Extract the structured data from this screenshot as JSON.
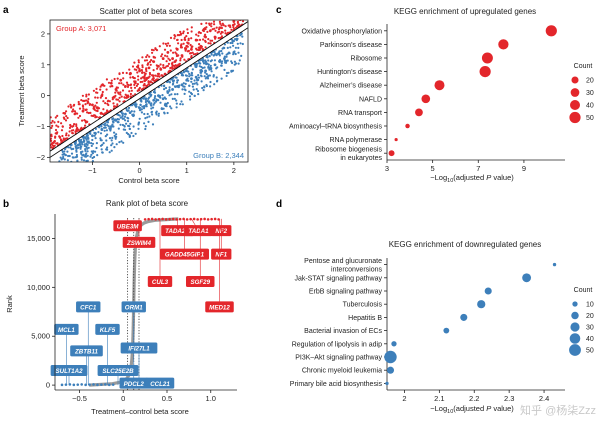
{
  "panels": {
    "a": {
      "letter": "a"
    },
    "b": {
      "letter": "b"
    },
    "c": {
      "letter": "c"
    },
    "d": {
      "letter": "d"
    }
  },
  "colors": {
    "red": "#e3262b",
    "blue": "#3d7fba",
    "gray": "#888888",
    "axis": "#222222"
  },
  "watermark": "知乎 @杨柒Zzz",
  "chart_data": [
    {
      "id": "a",
      "type": "scatter",
      "title": "Scatter plot of beta scores",
      "xlabel": "Control beta score",
      "ylabel": "Treatment beta score",
      "xlim": [
        -1.9,
        2.3
      ],
      "ylim": [
        -2.15,
        2.45
      ],
      "xticks": [
        -1,
        0,
        1,
        2
      ],
      "yticks": [
        -2,
        -1,
        0,
        1,
        2
      ],
      "groupA": {
        "label": "Group A: 3,071",
        "color": "#e3262b"
      },
      "groupB": {
        "label": "Group B: 2,344",
        "color": "#3d7fba"
      },
      "diagonal_lines": [
        {
          "intercept": 0.1
        },
        {
          "intercept": -0.1
        }
      ],
      "red_points": [
        [
          -0.6,
          0.4
        ],
        [
          -0.4,
          0.5
        ],
        [
          -0.2,
          0.7
        ],
        [
          0.0,
          0.8
        ],
        [
          0.2,
          0.9
        ],
        [
          0.3,
          1.1
        ],
        [
          0.5,
          1.2
        ],
        [
          0.6,
          1.4
        ],
        [
          0.8,
          1.5
        ],
        [
          1.0,
          1.6
        ],
        [
          1.2,
          1.8
        ],
        [
          1.4,
          1.9
        ],
        [
          1.5,
          2.1
        ],
        [
          1.7,
          2.2
        ],
        [
          2.0,
          2.4
        ],
        [
          -0.8,
          0.0
        ],
        [
          -0.5,
          0.2
        ],
        [
          0.1,
          0.6
        ],
        [
          0.4,
          0.95
        ],
        [
          0.9,
          1.3
        ],
        [
          1.1,
          1.5
        ],
        [
          -1.0,
          -0.3
        ],
        [
          -1.2,
          -0.5
        ],
        [
          0.7,
          1.2
        ],
        [
          1.3,
          1.6
        ],
        [
          1.6,
          1.9
        ],
        [
          -0.3,
          0.3
        ],
        [
          0.15,
          0.55
        ],
        [
          0.45,
          0.85
        ],
        [
          0.75,
          1.1
        ]
      ],
      "blue_points": [
        [
          -1.6,
          -1.9
        ],
        [
          -1.3,
          -1.6
        ],
        [
          -1.0,
          -1.3
        ],
        [
          -0.8,
          -1.1
        ],
        [
          -0.5,
          -0.8
        ],
        [
          -0.3,
          -0.6
        ],
        [
          0.0,
          -0.4
        ],
        [
          0.2,
          -0.2
        ],
        [
          0.4,
          0.0
        ],
        [
          0.6,
          0.1
        ],
        [
          0.8,
          0.3
        ],
        [
          1.0,
          0.5
        ],
        [
          1.2,
          0.6
        ],
        [
          1.4,
          0.8
        ],
        [
          1.6,
          1.0
        ],
        [
          1.8,
          1.2
        ],
        [
          2.0,
          1.4
        ],
        [
          -1.1,
          -1.5
        ],
        [
          -0.6,
          -1.0
        ],
        [
          0.1,
          -0.35
        ],
        [
          0.5,
          -0.1
        ],
        [
          0.9,
          0.35
        ],
        [
          1.3,
          0.75
        ],
        [
          1.7,
          1.1
        ],
        [
          -0.2,
          -0.55
        ],
        [
          0.3,
          -0.15
        ],
        [
          0.7,
          0.2
        ],
        [
          1.1,
          0.55
        ],
        [
          1.5,
          0.9
        ]
      ]
    },
    {
      "id": "b",
      "type": "scatter",
      "title": "Rank plot of beta score",
      "xlabel": "Treatment–control beta score",
      "ylabel": "Rank",
      "xlim": [
        -0.78,
        1.3
      ],
      "ylim": [
        -500,
        17500
      ],
      "xticks": [
        -0.5,
        0,
        0.5,
        1
      ],
      "xtick_labels": [
        "−0.5",
        "0",
        "0.5",
        "1.0"
      ],
      "yticks": [
        0,
        5000,
        10000,
        15000
      ],
      "ytick_labels": [
        "0",
        "5,000",
        "10,000",
        "15,000"
      ],
      "dotted_vlines": [
        0.05,
        0.12,
        0.18
      ],
      "red_genes": [
        {
          "name": "UBE3M",
          "x": 0.05,
          "y": 17000,
          "lx": 0.05,
          "ly": 16300
        },
        {
          "name": "ZSWIM4",
          "x": 0.18,
          "y": 17000,
          "lx": 0.18,
          "ly": 14600
        },
        {
          "name": "TADA2B",
          "x": 0.62,
          "y": 17000,
          "lx": 0.62,
          "ly": 15800
        },
        {
          "name": "TADA1",
          "x": 0.78,
          "y": 17000,
          "lx": 0.86,
          "ly": 15800
        },
        {
          "name": "NF2",
          "x": 1.12,
          "y": 17000,
          "lx": 1.12,
          "ly": 15800
        },
        {
          "name": "GADD45GIP1",
          "x": 0.7,
          "y": 17000,
          "lx": 0.7,
          "ly": 13400
        },
        {
          "name": "NF1",
          "x": 1.12,
          "y": 17000,
          "lx": 1.12,
          "ly": 13400
        },
        {
          "name": "CUL3",
          "x": 0.42,
          "y": 17000,
          "lx": 0.42,
          "ly": 10600
        },
        {
          "name": "SGF29",
          "x": 0.88,
          "y": 17000,
          "lx": 0.88,
          "ly": 10600
        },
        {
          "name": "MED12",
          "x": 1.1,
          "y": 17000,
          "lx": 1.1,
          "ly": 8000
        }
      ],
      "blue_genes": [
        {
          "name": "CFC1",
          "x": -0.4,
          "y": 0,
          "lx": -0.4,
          "ly": 8000
        },
        {
          "name": "ORM1",
          "x": 0.12,
          "y": 0,
          "lx": 0.12,
          "ly": 8000
        },
        {
          "name": "MCL1",
          "x": -0.65,
          "y": 0,
          "lx": -0.65,
          "ly": 5700
        },
        {
          "name": "KLF5",
          "x": -0.18,
          "y": 0,
          "lx": -0.18,
          "ly": 5700
        },
        {
          "name": "IFI27L1",
          "x": 0.18,
          "y": 0,
          "lx": 0.18,
          "ly": 3800
        },
        {
          "name": "ZBTB11",
          "x": -0.42,
          "y": 0,
          "lx": -0.42,
          "ly": 3500
        },
        {
          "name": "SULT1A2",
          "x": -0.62,
          "y": 0,
          "lx": -0.62,
          "ly": 1500
        },
        {
          "name": "SLC25E2B",
          "x": -0.06,
          "y": 0,
          "lx": -0.06,
          "ly": 1500
        },
        {
          "name": "PDCL2",
          "x": 0.12,
          "y": 0,
          "lx": 0.12,
          "ly": 200
        },
        {
          "name": "CCL21",
          "x": 0.42,
          "y": 0,
          "lx": 0.42,
          "ly": 200
        }
      ]
    },
    {
      "id": "c",
      "type": "scatter",
      "title": "KEGG enrichment of upregulated genes",
      "xlabel": "−Log₁₀(adjusted P value)",
      "xlim": [
        3,
        10.8
      ],
      "xticks": [
        3,
        5,
        7,
        9
      ],
      "categories": [
        "Oxidative phosphorylation",
        "Parkinson’s disease",
        "Ribosome",
        "Huntington’s disease",
        "Alzheimer’s disease",
        "NAFLD",
        "RNA transport",
        "Aminoacyl–tRNA biosynthesis",
        "RNA polymerase",
        "Ribosome biogenesis in eukaryotes"
      ],
      "label_lines": [
        [
          "Oxidative phosphorylation"
        ],
        [
          "Parkinson’s disease"
        ],
        [
          "Ribosome"
        ],
        [
          "Huntington’s disease"
        ],
        [
          "Alzheimer’s disease"
        ],
        [
          "NAFLD"
        ],
        [
          "RNA transport"
        ],
        [
          "Aminoacyl–tRNA biosynthesis"
        ],
        [
          "RNA polymerase"
        ],
        [
          "Ribosome biogenesis",
          "in eukaryotes"
        ]
      ],
      "values": [
        10.2,
        8.1,
        7.4,
        7.3,
        5.3,
        4.7,
        4.4,
        3.9,
        3.4,
        3.2
      ],
      "counts": [
        50,
        42,
        48,
        50,
        40,
        30,
        24,
        8,
        4,
        14
      ],
      "legend_title": "Count",
      "legend_values": [
        20,
        30,
        40,
        50
      ],
      "color": "#e3262b"
    },
    {
      "id": "d",
      "type": "scatter",
      "title": "KEGG enrichment of downregulated genes",
      "xlabel": "−Log₁₀(adjusted P value)",
      "xlim": [
        1.95,
        2.46
      ],
      "xticks": [
        2.0,
        2.1,
        2.2,
        2.3,
        2.4
      ],
      "categories": [
        "Pentose and glucuronate interconversions",
        "Jak-STAT signaling pathway",
        "ErbB signaling pathway",
        "Tuberculosis",
        "Hepatitis B",
        "Bacterial invasion of ECs",
        "Regulation of lipolysis in adip",
        "PI3K–Akt signaling pathway",
        "Chronic myeloid leukemia",
        "Primary bile acid biosynthesis"
      ],
      "label_lines": [
        [
          "Pentose and glucuronate",
          "interconversions"
        ],
        [
          "Jak-STAT signaling pathway"
        ],
        [
          "ErbB signaling pathway"
        ],
        [
          "Tuberculosis"
        ],
        [
          "Hepatitis B"
        ],
        [
          "Bacterial invasion of ECs"
        ],
        [
          "Regulation of lipolysis in adip"
        ],
        [
          "PI3K–Akt signaling pathway"
        ],
        [
          "Chronic myeloid leukemia"
        ],
        [
          "Primary bile acid biosynthesis"
        ]
      ],
      "values": [
        2.43,
        2.35,
        2.24,
        2.22,
        2.17,
        2.12,
        1.97,
        1.96,
        1.96,
        1.95
      ],
      "counts": [
        4,
        28,
        18,
        24,
        18,
        12,
        10,
        55,
        18,
        4
      ],
      "legend_title": "Count",
      "legend_values": [
        10,
        20,
        30,
        40,
        50
      ],
      "color": "#3d7fba"
    }
  ]
}
